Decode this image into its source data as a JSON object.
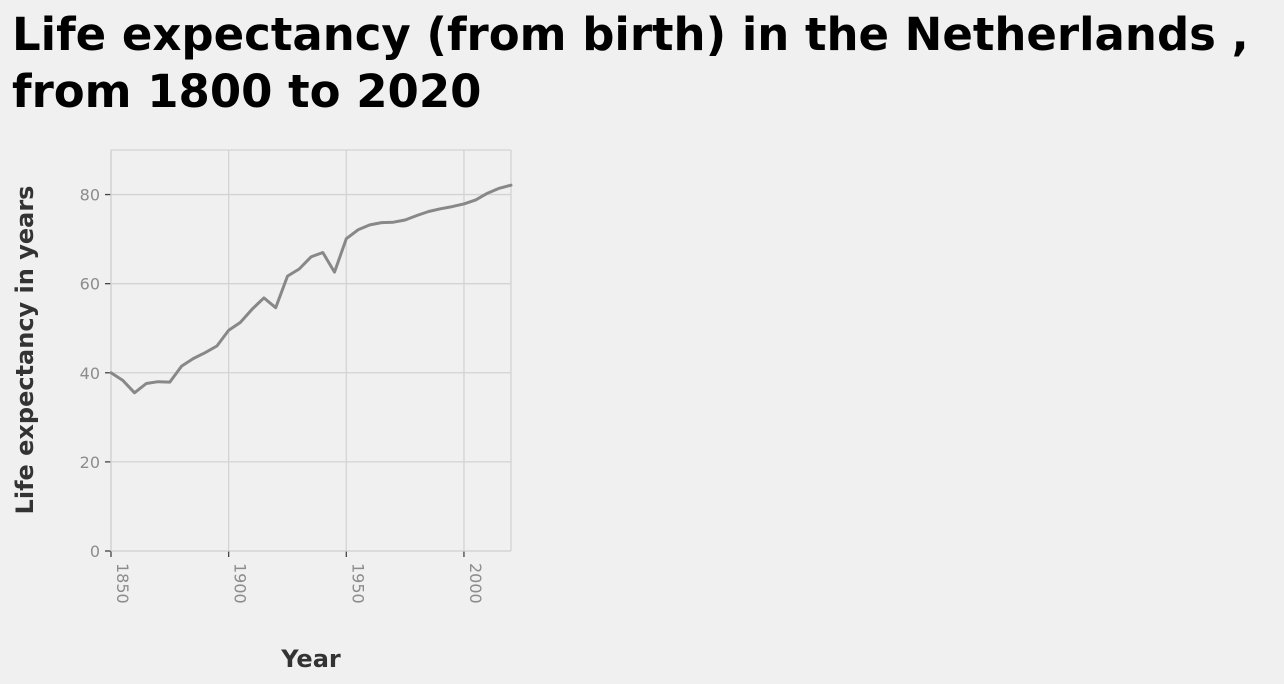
{
  "chart_data": {
    "type": "line",
    "title": "Life expectancy (from birth) in the Netherlands , from 1800 to 2020",
    "xlabel": "Year",
    "ylabel": "Life expectancy in years",
    "xlim": [
      1850,
      2020
    ],
    "ylim": [
      0,
      90
    ],
    "xticks": [
      1850,
      1900,
      1950,
      2000
    ],
    "yticks": [
      0,
      20,
      40,
      60,
      80
    ],
    "grid": true,
    "legend": "none",
    "colors": {
      "series": "#888888",
      "grid": "#d3d3d3",
      "background": "#f0f0f0"
    },
    "series": [
      {
        "x": [
          1850,
          1855,
          1860,
          1865,
          1870,
          1875,
          1880,
          1885,
          1890,
          1895,
          1900,
          1905,
          1910,
          1915,
          1920,
          1925,
          1930,
          1935,
          1940,
          1945,
          1950,
          1955,
          1960,
          1965,
          1970,
          1975,
          1980,
          1985,
          1990,
          1995,
          2000,
          2005,
          2010,
          2015,
          2020
        ],
        "y": [
          40.0,
          38.3,
          35.5,
          37.6,
          38.0,
          37.9,
          41.5,
          43.2,
          44.5,
          46.0,
          49.5,
          51.3,
          54.3,
          56.8,
          54.6,
          61.7,
          63.3,
          66.0,
          67.0,
          62.6,
          70.1,
          72.1,
          73.2,
          73.7,
          73.8,
          74.3,
          75.3,
          76.2,
          76.8,
          77.3,
          77.9,
          78.8,
          80.3,
          81.4,
          82.1
        ]
      }
    ]
  }
}
